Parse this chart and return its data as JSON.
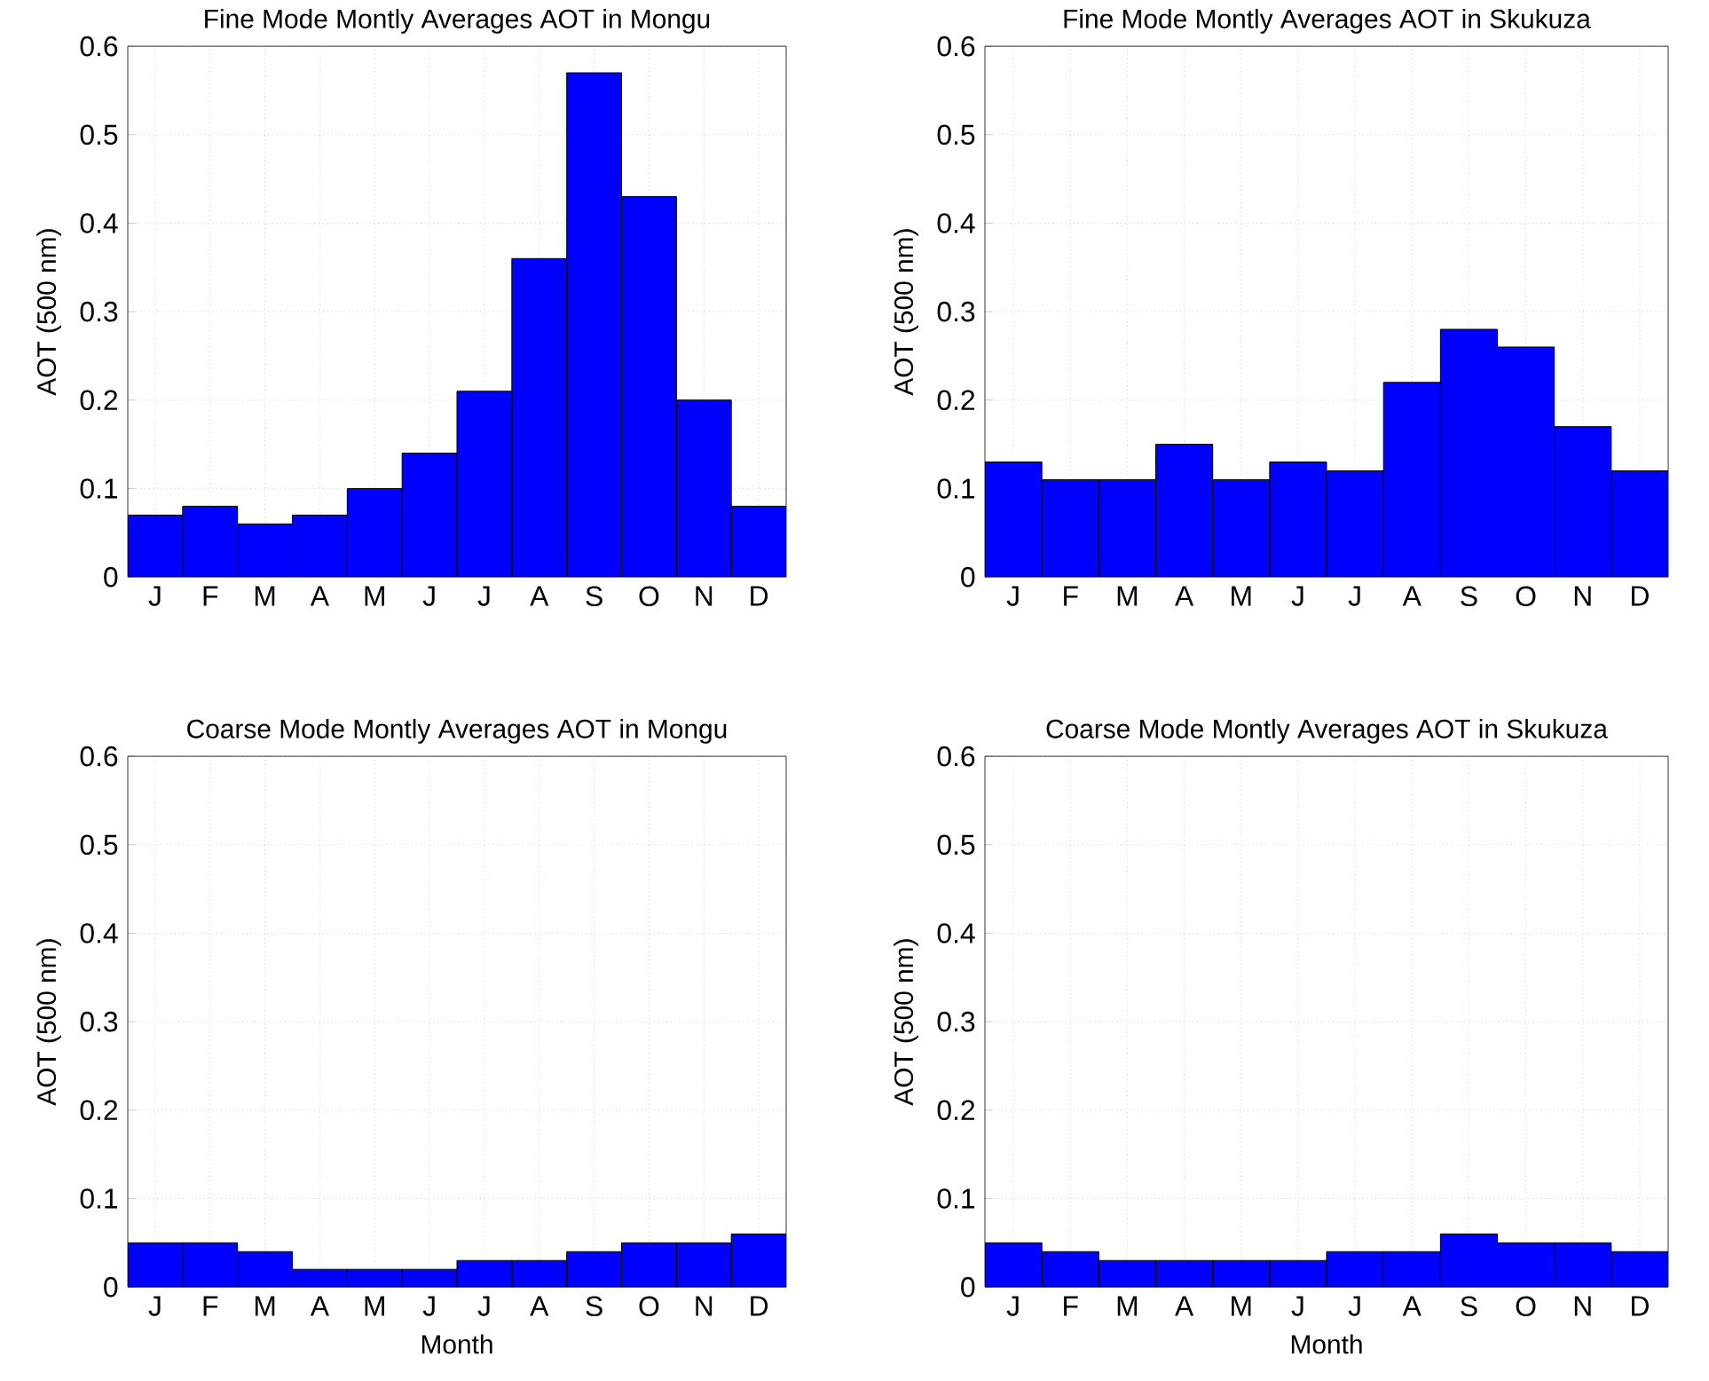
{
  "chart_data": [
    {
      "type": "bar",
      "title": "Fine Mode Montly Averages AOT in Mongu",
      "ylabel": "AOT (500 nm)",
      "categories": [
        "J",
        "F",
        "M",
        "A",
        "M",
        "J",
        "J",
        "A",
        "S",
        "O",
        "N",
        "D"
      ],
      "values": [
        0.07,
        0.08,
        0.06,
        0.07,
        0.1,
        0.14,
        0.21,
        0.36,
        0.57,
        0.43,
        0.2,
        0.08
      ],
      "color": "#0000ff",
      "ylim": [
        0,
        0.6
      ],
      "yticks": [
        0,
        0.1,
        0.2,
        0.3,
        0.4,
        0.5,
        0.6
      ],
      "grid": true
    },
    {
      "type": "bar",
      "title": "Fine Mode Montly Averages AOT in Skukuza",
      "ylabel": "AOT (500 nm)",
      "categories": [
        "J",
        "F",
        "M",
        "A",
        "M",
        "J",
        "J",
        "A",
        "S",
        "O",
        "N",
        "D"
      ],
      "values": [
        0.13,
        0.11,
        0.11,
        0.15,
        0.11,
        0.13,
        0.12,
        0.22,
        0.28,
        0.26,
        0.17,
        0.12
      ],
      "color": "#0000ff",
      "ylim": [
        0,
        0.6
      ],
      "yticks": [
        0,
        0.1,
        0.2,
        0.3,
        0.4,
        0.5,
        0.6
      ],
      "grid": true
    },
    {
      "type": "bar",
      "title": "Coarse Mode Montly Averages AOT in Mongu",
      "xlabel": "Month",
      "ylabel": "AOT (500 nm)",
      "categories": [
        "J",
        "F",
        "M",
        "A",
        "M",
        "J",
        "J",
        "A",
        "S",
        "O",
        "N",
        "D"
      ],
      "values": [
        0.05,
        0.05,
        0.04,
        0.02,
        0.02,
        0.02,
        0.03,
        0.03,
        0.04,
        0.05,
        0.05,
        0.06
      ],
      "color": "#0000ff",
      "ylim": [
        0,
        0.6
      ],
      "yticks": [
        0,
        0.1,
        0.2,
        0.3,
        0.4,
        0.5,
        0.6
      ],
      "grid": true
    },
    {
      "type": "bar",
      "title": "Coarse Mode Montly Averages AOT in Skukuza",
      "xlabel": "Month",
      "ylabel": "AOT (500 nm)",
      "categories": [
        "J",
        "F",
        "M",
        "A",
        "M",
        "J",
        "J",
        "A",
        "S",
        "O",
        "N",
        "D"
      ],
      "values": [
        0.05,
        0.04,
        0.03,
        0.03,
        0.03,
        0.03,
        0.04,
        0.04,
        0.06,
        0.05,
        0.05,
        0.04
      ],
      "color": "#0000ff",
      "ylim": [
        0,
        0.6
      ],
      "yticks": [
        0,
        0.1,
        0.2,
        0.3,
        0.4,
        0.5,
        0.6
      ],
      "grid": true
    }
  ]
}
